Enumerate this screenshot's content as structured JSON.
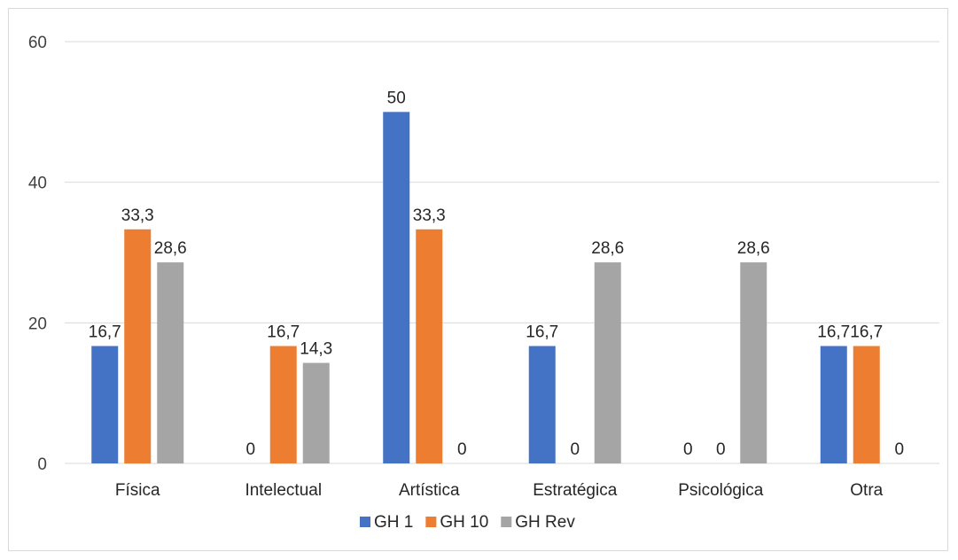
{
  "chart_data": {
    "type": "bar",
    "title": "",
    "xlabel": "",
    "ylabel": "",
    "categories": [
      "Física",
      "Intelectual",
      "Artística",
      "Estratégica",
      "Psicológica",
      "Otra"
    ],
    "series": [
      {
        "name": "GH 1",
        "color": "#4472c4",
        "values": [
          16.7,
          0,
          50,
          16.7,
          0,
          16.7
        ],
        "labels": [
          "16,7",
          "0",
          "50",
          "16,7",
          "0",
          "16,7"
        ]
      },
      {
        "name": "GH 10",
        "color": "#ed7d31",
        "values": [
          33.3,
          16.7,
          33.3,
          0,
          0,
          16.7
        ],
        "labels": [
          "33,3",
          "16,7",
          "33,3",
          "0",
          "0",
          "16,7"
        ]
      },
      {
        "name": "GH Rev",
        "color": "#a5a5a5",
        "values": [
          28.6,
          14.3,
          0,
          28.6,
          28.6,
          0
        ],
        "labels": [
          "28,6",
          "14,3",
          "0",
          "28,6",
          "28,6",
          "0"
        ]
      }
    ],
    "ylim": [
      0,
      60
    ],
    "yticks": [
      0,
      20,
      40,
      60
    ],
    "ytick_labels": [
      "0",
      "20",
      "40",
      "60"
    ],
    "grid": true,
    "gridline_color": "#d9d9d9",
    "legend_position": "bottom"
  }
}
